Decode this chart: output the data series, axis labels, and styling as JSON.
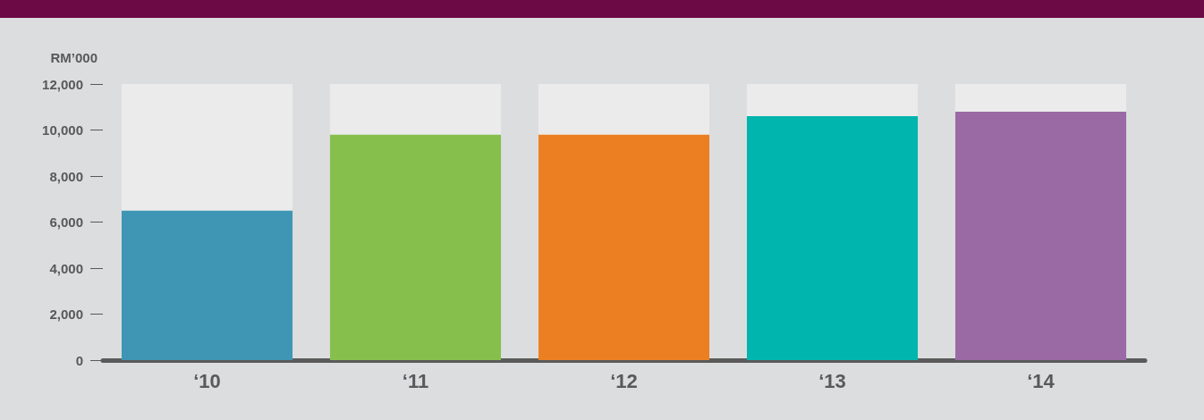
{
  "chart_data": {
    "type": "bar",
    "ylabel": "RM’000",
    "categories": [
      "‘10",
      "‘11",
      "‘12",
      "‘13",
      "‘14"
    ],
    "values": [
      6500,
      9800,
      9800,
      10600,
      10800
    ],
    "colors": [
      "#3e96b4",
      "#86bf4c",
      "#ec7f22",
      "#00b5ad",
      "#9a6aa5"
    ],
    "ylim": [
      0,
      12000
    ],
    "yticks": [
      0,
      {
        "value": 2000,
        "label": "2,000"
      },
      {
        "value": 4000,
        "label": "4,000"
      },
      {
        "value": 6000,
        "label": "6,000"
      },
      {
        "value": 8000,
        "label": "8,000"
      },
      {
        "value": 10000,
        "label": "10,000"
      },
      {
        "value": 12000,
        "label": "12,000"
      }
    ]
  }
}
